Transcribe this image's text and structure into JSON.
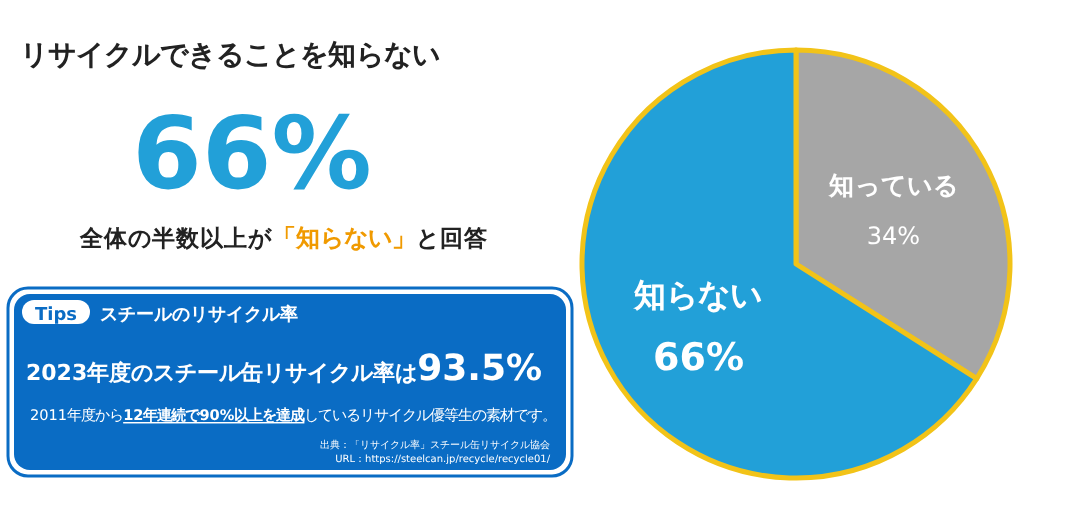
{
  "chart_data": {
    "type": "pie",
    "title": "リサイクルできることを知らない",
    "subtitle": "66%",
    "categories": [
      "知っている",
      "知らない"
    ],
    "values": [
      34,
      66
    ],
    "value_labels": [
      "34%",
      "66%"
    ],
    "colors": [
      "#a6a6a6",
      "#22a0d8"
    ],
    "annotations": [
      "全体の半数以上が**「知らない」**と回答",
      "Tips",
      "スチールのリサイクル率",
      "2023年度のスチール缶リサイクル率は**93.5%**",
      "2011年度から**12年連続で90%以上を達成**しているリサイクル優等生の素材です。",
      "出典：「リサイクル率」スチール缶リサイクル協会",
      "URL：https://steelcan.jp/recycle/recycle01/"
    ]
  }
}
